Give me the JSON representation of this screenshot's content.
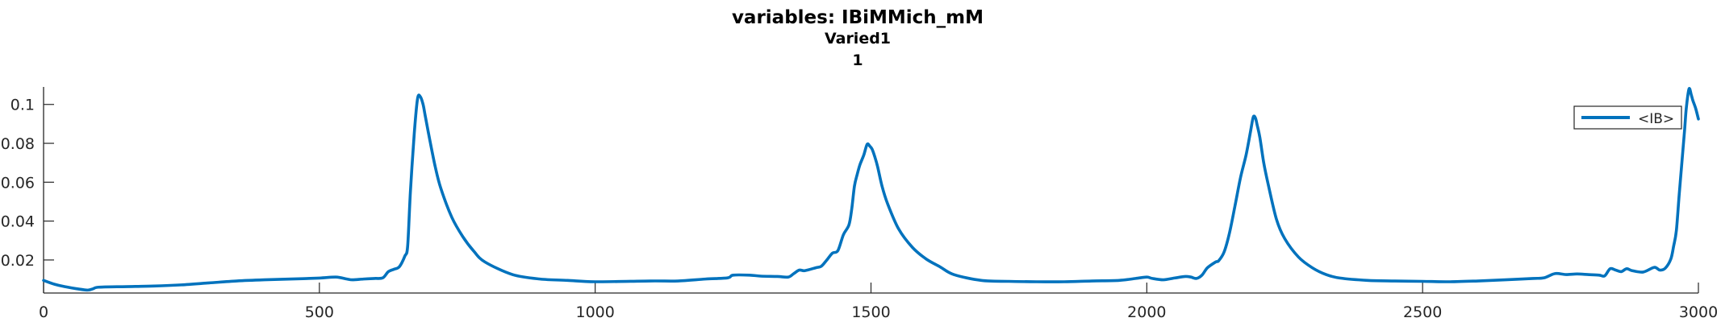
{
  "chart_data": {
    "type": "line",
    "title_lines": [
      "variables: IBiMMich_mM",
      "Varied1",
      "1"
    ],
    "xlabel": "",
    "ylabel": "",
    "xlim": [
      0,
      3000
    ],
    "ylim": [
      0.003,
      0.109
    ],
    "xticks": [
      0,
      500,
      1000,
      1500,
      2000,
      2500,
      3000
    ],
    "yticks": [
      0.02,
      0.04,
      0.06,
      0.08,
      0.1
    ],
    "ytick_labels": [
      "0.02",
      "0.04",
      "0.06",
      "0.08",
      "0.1"
    ],
    "grid": false,
    "legend_position": "top-right",
    "series": [
      {
        "name": "<IB>",
        "color": "#0072BD",
        "x": [
          0,
          20,
          40,
          60,
          80,
          90,
          100,
          150,
          200,
          250,
          300,
          350,
          400,
          450,
          500,
          530,
          550,
          560,
          580,
          600,
          615,
          625,
          635,
          645,
          655,
          660,
          665,
          672,
          678,
          683,
          688,
          692,
          700,
          710,
          720,
          740,
          760,
          780,
          800,
          850,
          900,
          950,
          1000,
          1100,
          1150,
          1200,
          1240,
          1250,
          1280,
          1300,
          1330,
          1350,
          1360,
          1370,
          1380,
          1400,
          1410,
          1420,
          1430,
          1440,
          1450,
          1460,
          1465,
          1470,
          1475,
          1480,
          1487,
          1493,
          1498,
          1502,
          1507,
          1512,
          1520,
          1530,
          1550,
          1575,
          1600,
          1625,
          1650,
          1700,
          1750,
          1800,
          1850,
          1900,
          1950,
          1980,
          2000,
          2010,
          2030,
          2050,
          2070,
          2080,
          2090,
          2100,
          2110,
          2125,
          2130,
          2140,
          2150,
          2160,
          2170,
          2180,
          2188,
          2193,
          2197,
          2200,
          2205,
          2212,
          2220,
          2235,
          2250,
          2275,
          2300,
          2325,
          2350,
          2400,
          2450,
          2500,
          2550,
          2600,
          2650,
          2700,
          2720,
          2740,
          2760,
          2780,
          2800,
          2820,
          2830,
          2840,
          2850,
          2860,
          2870,
          2880,
          2900,
          2920,
          2930,
          2940,
          2950,
          2955,
          2960,
          2965,
          2970,
          2975,
          2978,
          2983,
          2987,
          2990,
          2995,
          3000
        ],
        "y": [
          0.0095,
          0.0075,
          0.0062,
          0.0052,
          0.0045,
          0.0052,
          0.006,
          0.0063,
          0.0066,
          0.0072,
          0.0082,
          0.0092,
          0.0098,
          0.0102,
          0.0107,
          0.0112,
          0.0102,
          0.0098,
          0.0102,
          0.0105,
          0.0108,
          0.014,
          0.0152,
          0.0165,
          0.022,
          0.027,
          0.055,
          0.085,
          0.103,
          0.104,
          0.1,
          0.094,
          0.082,
          0.068,
          0.057,
          0.042,
          0.032,
          0.0245,
          0.019,
          0.0125,
          0.0102,
          0.0095,
          0.0088,
          0.0092,
          0.0092,
          0.0102,
          0.0108,
          0.0122,
          0.0122,
          0.0117,
          0.0115,
          0.0112,
          0.013,
          0.0148,
          0.0145,
          0.016,
          0.0168,
          0.02,
          0.0235,
          0.0248,
          0.033,
          0.038,
          0.046,
          0.058,
          0.064,
          0.069,
          0.074,
          0.0795,
          0.0785,
          0.077,
          0.073,
          0.068,
          0.058,
          0.049,
          0.036,
          0.0265,
          0.0205,
          0.0165,
          0.0125,
          0.0095,
          0.009,
          0.0088,
          0.0088,
          0.0092,
          0.0095,
          0.0105,
          0.0112,
          0.0105,
          0.0098,
          0.0107,
          0.0115,
          0.0112,
          0.0105,
          0.0122,
          0.016,
          0.019,
          0.0195,
          0.024,
          0.034,
          0.048,
          0.0625,
          0.074,
          0.086,
          0.0935,
          0.093,
          0.0895,
          0.083,
          0.07,
          0.059,
          0.041,
          0.031,
          0.0215,
          0.016,
          0.0125,
          0.0107,
          0.0095,
          0.0092,
          0.009,
          0.0088,
          0.0092,
          0.0098,
          0.0105,
          0.0108,
          0.013,
          0.0125,
          0.0128,
          0.0125,
          0.0122,
          0.0118,
          0.0155,
          0.0148,
          0.014,
          0.0155,
          0.0145,
          0.0138,
          0.0162,
          0.0148,
          0.0158,
          0.0205,
          0.027,
          0.035,
          0.053,
          0.07,
          0.087,
          0.098,
          0.108,
          0.105,
          0.102,
          0.098,
          0.0925
        ]
      }
    ]
  }
}
